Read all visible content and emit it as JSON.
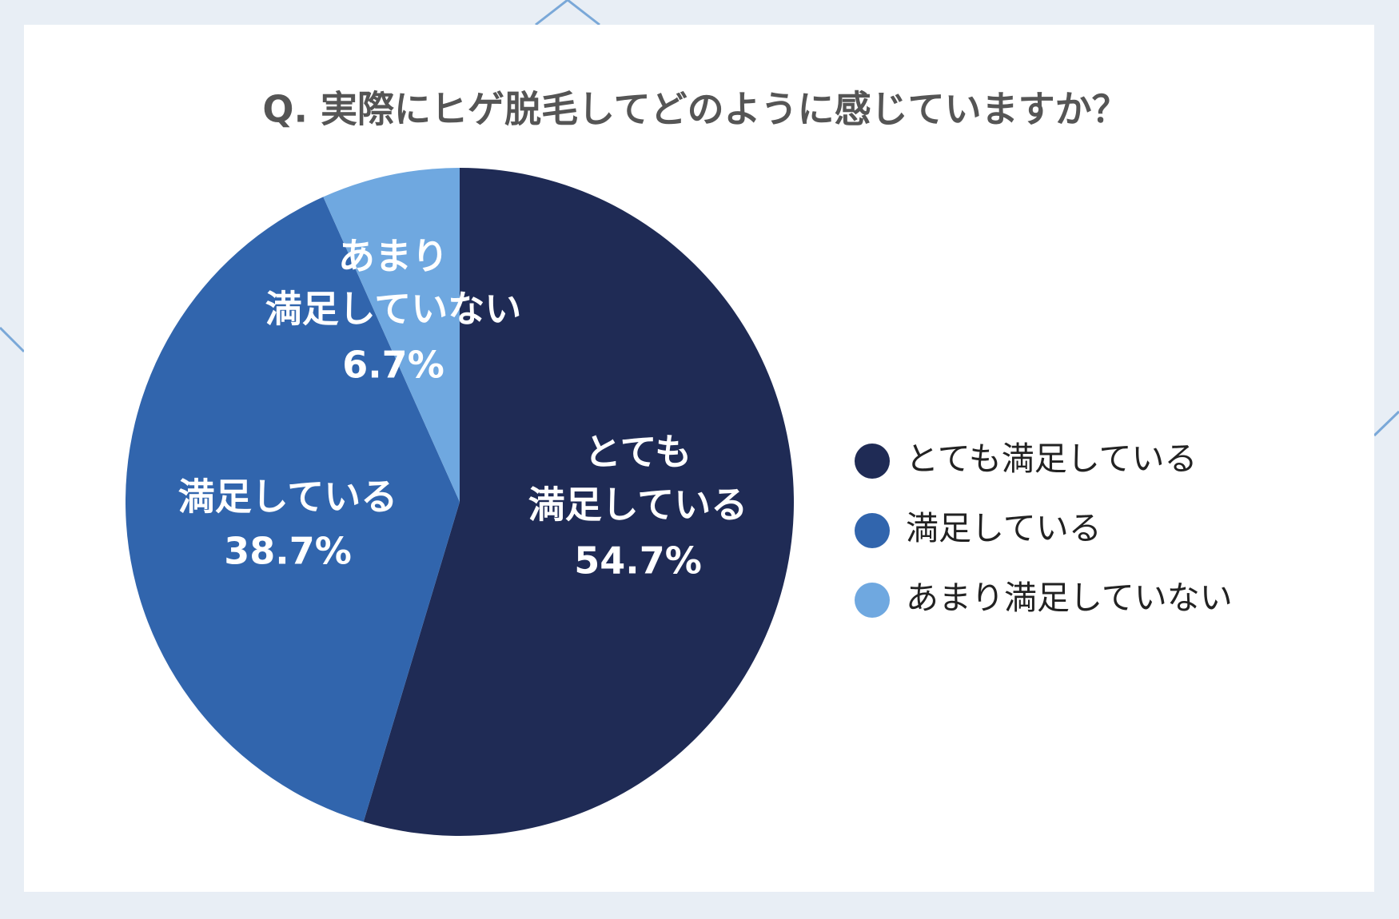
{
  "chart_data": {
    "type": "pie",
    "title": "Q. 実際にヒゲ脱毛してどのように感じていますか？",
    "categories": [
      "とても満足している",
      "満足している",
      "あまり満足していない"
    ],
    "slice_labels": [
      [
        "とても",
        "満足している"
      ],
      [
        "満足している"
      ],
      [
        "あまり",
        "満足していない"
      ]
    ],
    "values": [
      54.7,
      38.7,
      6.7
    ],
    "value_labels": [
      "54.7%",
      "38.7%",
      "6.7%"
    ],
    "colors": [
      "#1f2b55",
      "#3165ad",
      "#6fa8e0"
    ],
    "legend": "right"
  }
}
